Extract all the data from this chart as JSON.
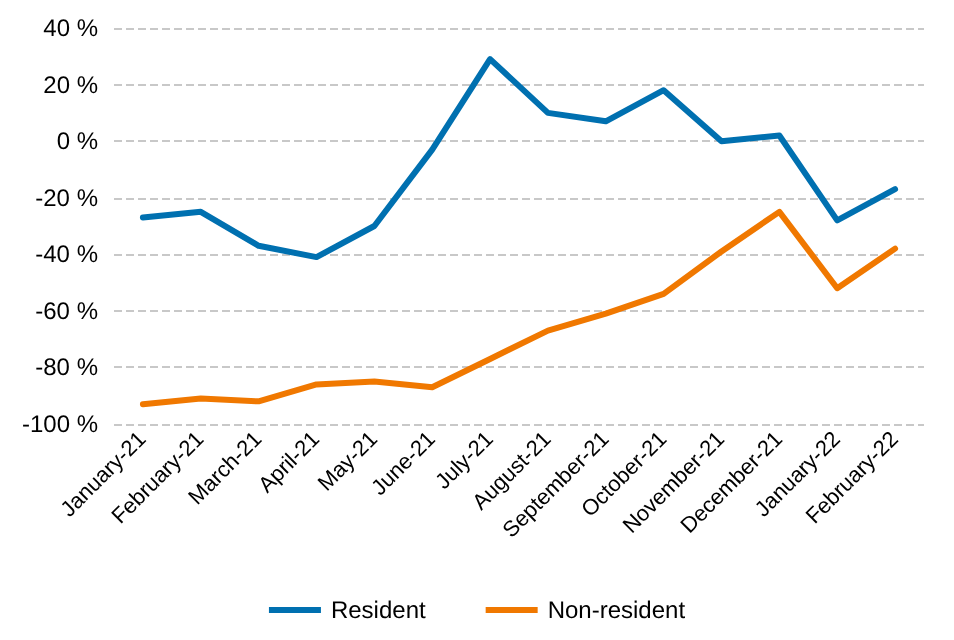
{
  "chart_data": {
    "type": "line",
    "categories": [
      "January-21",
      "February-21",
      "March-21",
      "April-21",
      "May-21",
      "June-21",
      "July-21",
      "August-21",
      "September-21",
      "October-21",
      "November-21",
      "December-21",
      "January-22",
      "February-22"
    ],
    "series": [
      {
        "name": "Resident",
        "color": "#0070b0",
        "values": [
          -27,
          -25,
          -37,
          -41,
          -30,
          -3,
          29,
          10,
          7,
          18,
          0,
          2,
          -28,
          -17
        ]
      },
      {
        "name": "Non-resident",
        "color": "#f07800",
        "values": [
          -93,
          -91,
          -92,
          -86,
          -85,
          -87,
          -77,
          -67,
          -61,
          -54,
          -39,
          -25,
          -52,
          -38
        ]
      }
    ],
    "ylim": [
      -100,
      40
    ],
    "yticks": [
      {
        "value": -100,
        "label": "-100 %"
      },
      {
        "value": -80,
        "label": "-80 %"
      },
      {
        "value": -60,
        "label": "-60 %"
      },
      {
        "value": -40,
        "label": "-40 %"
      },
      {
        "value": -20,
        "label": "-20 %"
      },
      {
        "value": 0,
        "label": "0 %"
      },
      {
        "value": 20,
        "label": "20 %"
      },
      {
        "value": 40,
        "label": "40 %"
      }
    ],
    "grid": "y",
    "legend": "bottom",
    "marker": "none",
    "line_style": "solid"
  }
}
